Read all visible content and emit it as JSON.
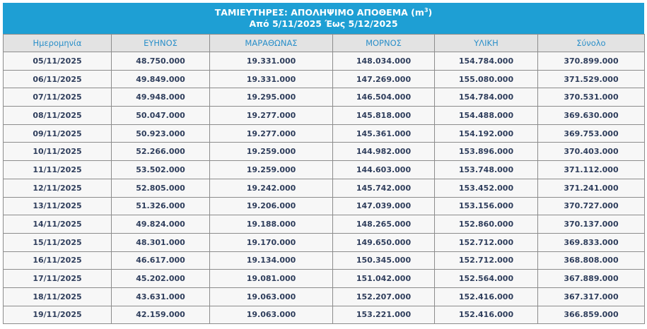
{
  "title": {
    "line1_prefix": "ΤΑΜΙΕΥΤΗΡΕΣ: ΑΠΟΛΗΨΙΜΟ ΑΠΟΘΕΜΑ (m",
    "line1_sup": "3",
    "line1_suffix": ")",
    "line2": "Από 5/11/2025 Έως 5/12/2025"
  },
  "colors": {
    "title_bg": "#1e9fd4",
    "header_text": "#2a8fc9",
    "cell_text": "#2f3e5c"
  },
  "table": {
    "headers": [
      "Ημερομηνία",
      "ΕΥΗΝΟΣ",
      "ΜΑΡΑΘΩΝΑΣ",
      "ΜΟΡΝΟΣ",
      "ΥΛΙΚΗ",
      "Σύνολο"
    ],
    "rows": [
      [
        "05/11/2025",
        "48.750.000",
        "19.331.000",
        "148.034.000",
        "154.784.000",
        "370.899.000"
      ],
      [
        "06/11/2025",
        "49.849.000",
        "19.331.000",
        "147.269.000",
        "155.080.000",
        "371.529.000"
      ],
      [
        "07/11/2025",
        "49.948.000",
        "19.295.000",
        "146.504.000",
        "154.784.000",
        "370.531.000"
      ],
      [
        "08/11/2025",
        "50.047.000",
        "19.277.000",
        "145.818.000",
        "154.488.000",
        "369.630.000"
      ],
      [
        "09/11/2025",
        "50.923.000",
        "19.277.000",
        "145.361.000",
        "154.192.000",
        "369.753.000"
      ],
      [
        "10/11/2025",
        "52.266.000",
        "19.259.000",
        "144.982.000",
        "153.896.000",
        "370.403.000"
      ],
      [
        "11/11/2025",
        "53.502.000",
        "19.259.000",
        "144.603.000",
        "153.748.000",
        "371.112.000"
      ],
      [
        "12/11/2025",
        "52.805.000",
        "19.242.000",
        "145.742.000",
        "153.452.000",
        "371.241.000"
      ],
      [
        "13/11/2025",
        "51.326.000",
        "19.206.000",
        "147.039.000",
        "153.156.000",
        "370.727.000"
      ],
      [
        "14/11/2025",
        "49.824.000",
        "19.188.000",
        "148.265.000",
        "152.860.000",
        "370.137.000"
      ],
      [
        "15/11/2025",
        "48.301.000",
        "19.170.000",
        "149.650.000",
        "152.712.000",
        "369.833.000"
      ],
      [
        "16/11/2025",
        "46.617.000",
        "19.134.000",
        "150.345.000",
        "152.712.000",
        "368.808.000"
      ],
      [
        "17/11/2025",
        "45.202.000",
        "19.081.000",
        "151.042.000",
        "152.564.000",
        "367.889.000"
      ],
      [
        "18/11/2025",
        "43.631.000",
        "19.063.000",
        "152.207.000",
        "152.416.000",
        "367.317.000"
      ],
      [
        "19/11/2025",
        "42.159.000",
        "19.063.000",
        "153.221.000",
        "152.416.000",
        "366.859.000"
      ]
    ]
  }
}
